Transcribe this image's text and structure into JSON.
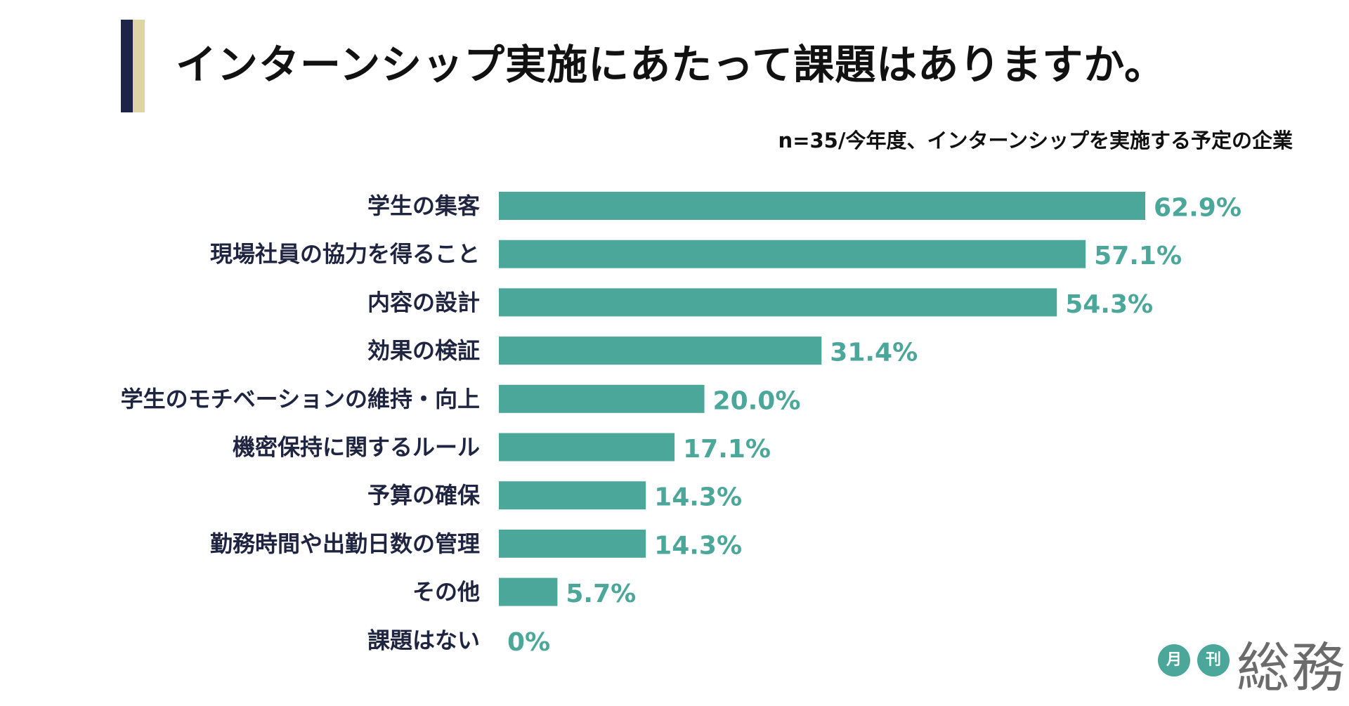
{
  "title": "インターンシップ実施にあたって課題はありますか。",
  "subtitle": "n=35/今年度、インターンシップを実施する予定の企業",
  "colors": {
    "bar": "#4aa79a",
    "value_text": "#4aa79a",
    "navy": "#1c2448",
    "beige": "#ded4a6"
  },
  "chart_data": {
    "type": "bar",
    "orientation": "horizontal",
    "title": "インターンシップ実施にあたって課題はありますか。",
    "subtitle": "n=35/今年度、インターンシップを実施する予定の企業",
    "categories": [
      "学生の集客",
      "現場社員の協力を得ること",
      "内容の設計",
      "効果の検証",
      "学生のモチベーションの維持・向上",
      "機密保持に関するルール",
      "予算の確保",
      "勤務時間や出勤日数の管理",
      "その他",
      "課題はない"
    ],
    "values": [
      62.9,
      57.1,
      54.3,
      31.4,
      20.0,
      17.1,
      14.3,
      14.3,
      5.7,
      0
    ],
    "value_labels": [
      "62.9%",
      "57.1%",
      "54.3%",
      "31.4%",
      "20.0%",
      "17.1%",
      "14.3%",
      "14.3%",
      "5.7%",
      "0%"
    ],
    "xlim": [
      0,
      62.9
    ],
    "unit": "%",
    "grid": false,
    "legend": "none"
  },
  "logo": {
    "circle1": "月",
    "circle2": "刊",
    "main": "総務"
  }
}
